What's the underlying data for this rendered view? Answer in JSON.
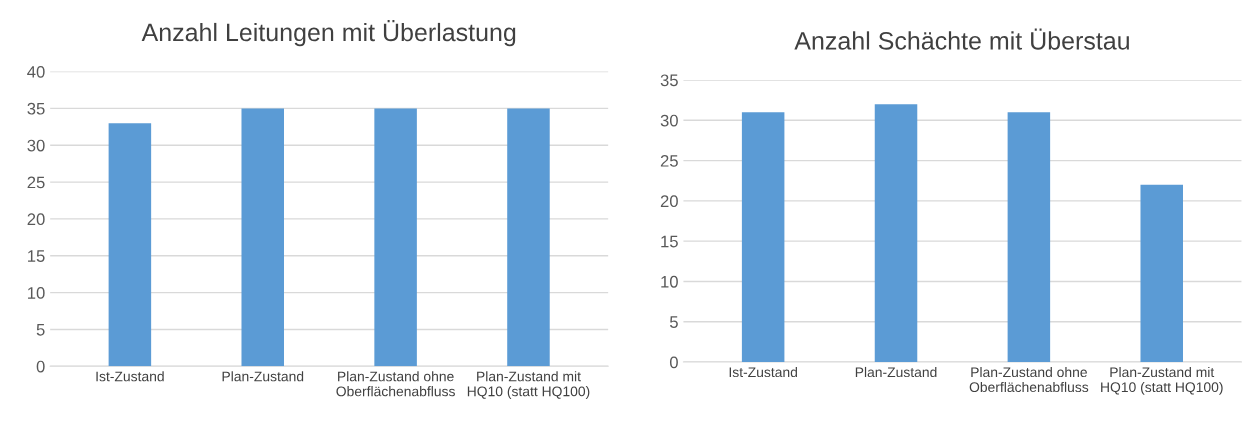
{
  "chart_data": [
    {
      "type": "bar",
      "title": "Anzahl Leitungen mit Überlastung",
      "categories": [
        "Ist-Zustand",
        "Plan-Zustand",
        "Plan-Zustand ohne\nOberflächenabfluss",
        "Plan-Zustand mit\nHQ10 (statt HQ100)"
      ],
      "values": [
        33,
        35,
        35,
        35
      ],
      "color": "#5b9bd5",
      "ylim": [
        0,
        40
      ],
      "yticks": [
        0,
        5,
        10,
        15,
        20,
        25,
        30,
        35,
        40
      ],
      "grid": "y"
    },
    {
      "type": "bar",
      "title": "Anzahl Schächte mit Überstau",
      "categories": [
        "Ist-Zustand",
        "Plan-Zustand",
        "Plan-Zustand ohne\nOberflächenabfluss",
        "Plan-Zustand mit\nHQ10 (statt HQ100)"
      ],
      "values": [
        31,
        32,
        31,
        22
      ],
      "color": "#5b9bd5",
      "ylim": [
        0,
        35
      ],
      "yticks": [
        0,
        5,
        10,
        15,
        20,
        25,
        30,
        35
      ],
      "grid": "y"
    }
  ]
}
